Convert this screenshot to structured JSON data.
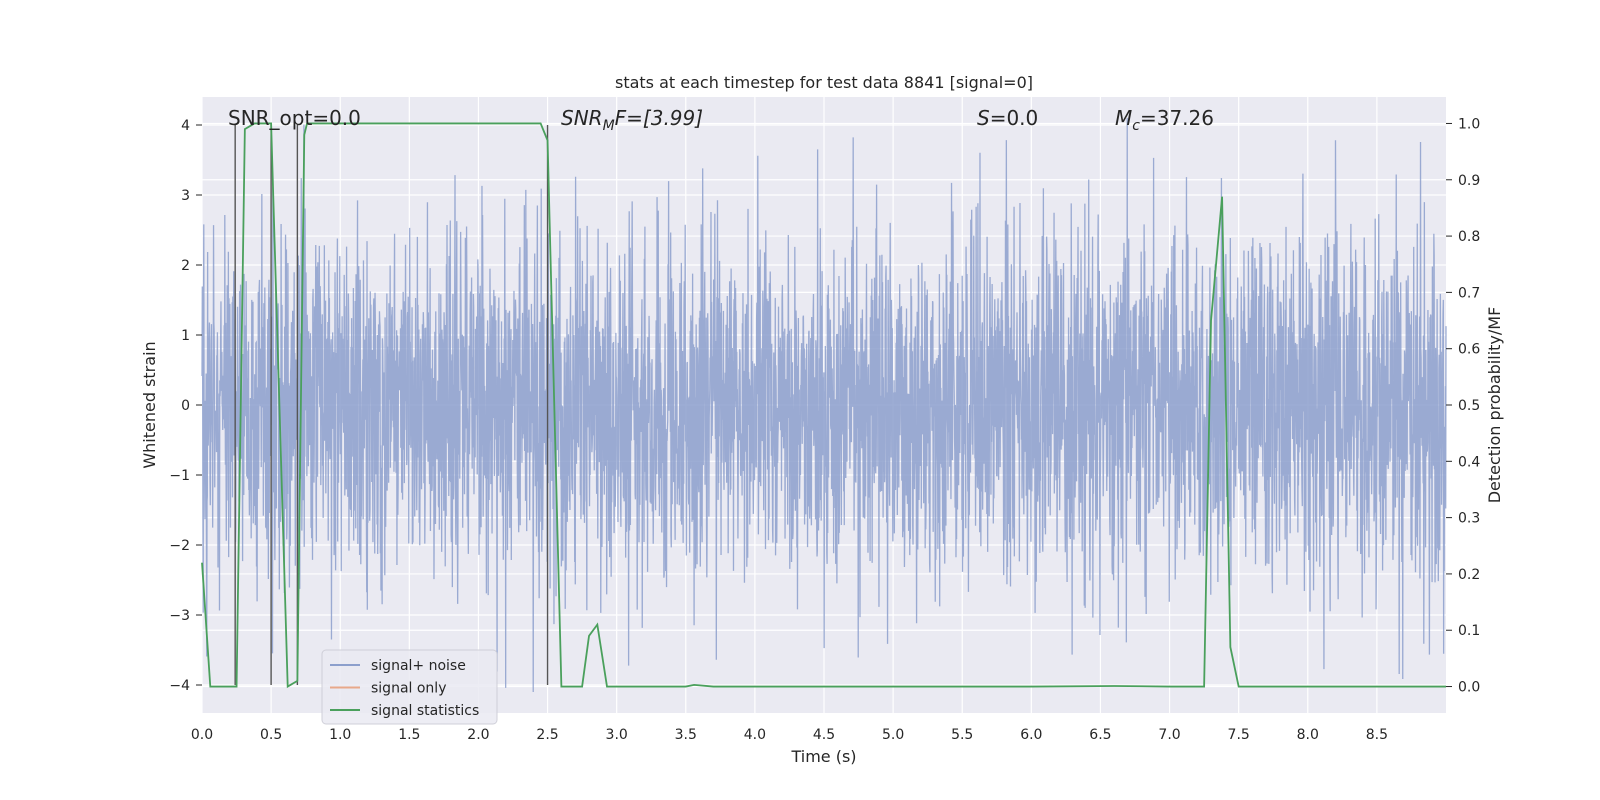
{
  "chart_data": {
    "type": "line",
    "title": "stats at each timestep for test data 8841 [signal=0]",
    "xlabel": "Time (s)",
    "ylabel_left": "Whitened strain",
    "ylabel_right": "Detection probability/MF",
    "xlim": [
      0,
      9.0
    ],
    "ylim_left": [
      -4.4,
      4.4
    ],
    "ylim_right": [
      -0.047,
      1.047
    ],
    "grid": true,
    "legend_position": "lower-left",
    "x_ticks": [
      "0.0",
      "0.5",
      "1.0",
      "1.5",
      "2.0",
      "2.5",
      "3.0",
      "3.5",
      "4.0",
      "4.5",
      "5.0",
      "5.5",
      "6.0",
      "6.5",
      "7.0",
      "7.5",
      "8.0",
      "8.5"
    ],
    "y_ticks_left": [
      "−4",
      "−3",
      "−2",
      "−1",
      "0",
      "1",
      "2",
      "3",
      "4"
    ],
    "y_ticks_right": [
      "0.0",
      "0.1",
      "0.2",
      "0.3",
      "0.4",
      "0.5",
      "0.6",
      "0.7",
      "0.8",
      "0.9",
      "1.0"
    ],
    "annotations": {
      "snr_opt": "SNR_opt=0.0",
      "snr_mf_main": "SNR",
      "snr_mf_sub": "M",
      "snr_mf_rest": "F=[3.99]",
      "s_main": "S",
      "s_rest": "=0.0",
      "mc_main": "M",
      "mc_sub": "c",
      "mc_rest": "=37.26"
    },
    "series": [
      {
        "name": "signal+ noise",
        "color": "#8c9fcc",
        "note_amplitude": "noise band roughly -4 to 4"
      },
      {
        "name": "signal only",
        "color": "#e8a88a",
        "values": []
      },
      {
        "name": "signal statistics",
        "color": "#4aa05c",
        "axis": "right",
        "x": [
          0.0,
          0.06,
          0.25,
          0.31,
          0.38,
          0.44,
          0.5,
          0.62,
          0.69,
          0.74,
          0.76,
          1.0,
          1.5,
          2.0,
          2.4,
          2.45,
          2.5,
          2.6,
          2.75,
          2.8,
          2.86,
          2.93,
          3.0,
          3.5,
          3.56,
          3.7,
          4.0,
          5.0,
          6.0,
          6.6,
          7.0,
          7.25,
          7.3,
          7.38,
          7.44,
          7.5,
          8.0,
          8.5,
          9.0
        ],
        "values": [
          0.22,
          0.0,
          0.0,
          0.99,
          1.0,
          1.0,
          1.0,
          0.0,
          0.01,
          0.98,
          1.0,
          1.0,
          1.0,
          1.0,
          1.0,
          1.0,
          0.97,
          0.0,
          0.0,
          0.09,
          0.11,
          0.0,
          0.0,
          0.0,
          0.003,
          0.0,
          0.0,
          0.0,
          0.0,
          0.001,
          0.0,
          0.0,
          0.65,
          0.87,
          0.07,
          0.0,
          0.0,
          0.0,
          0.0
        ]
      }
    ],
    "vertical_lines_x": [
      0.24,
      0.5,
      0.69,
      2.5
    ]
  }
}
